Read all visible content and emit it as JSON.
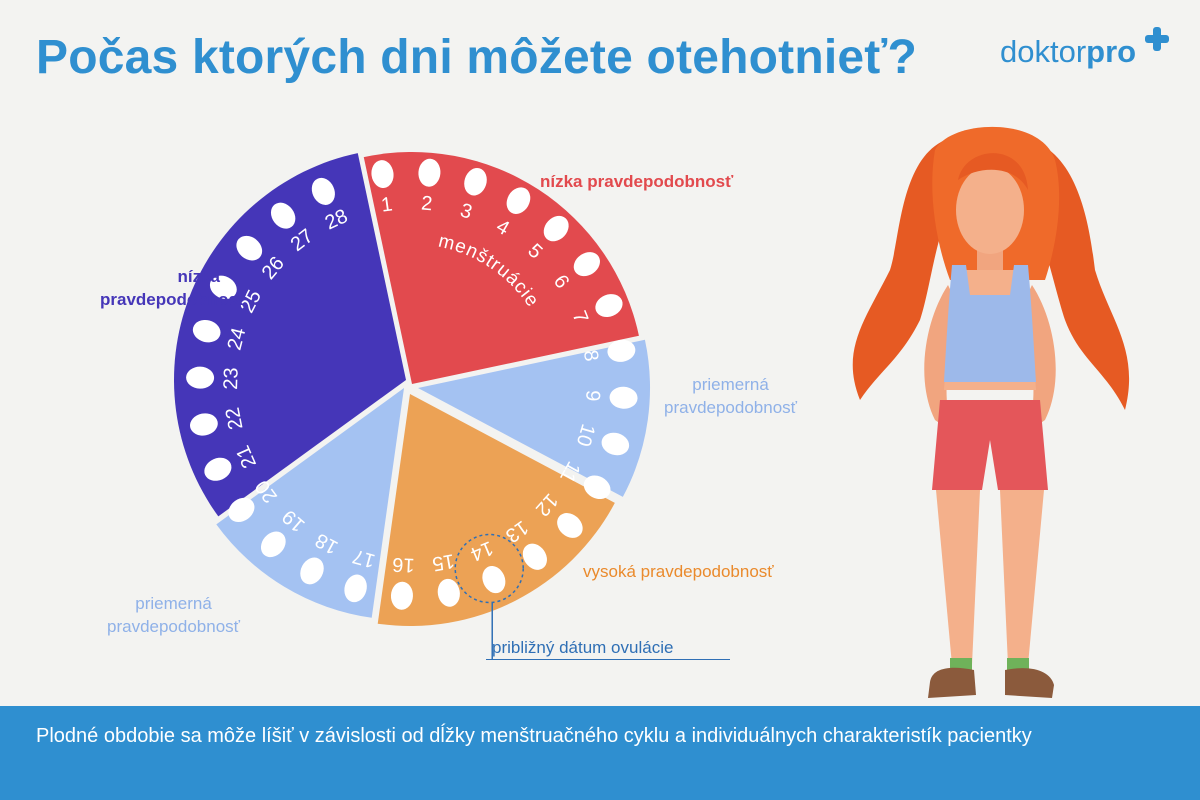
{
  "title": "Počas ktorých dni môžete otehotnieť?",
  "logo": {
    "part1": "doktor",
    "part2": "pro"
  },
  "wheel": {
    "phase_label": "menštruácie",
    "day_numbers": [
      "1",
      "2",
      "3",
      "4",
      "5",
      "6",
      "7",
      "8",
      "9",
      "10",
      "11",
      "12",
      "13",
      "14",
      "15",
      "16",
      "17",
      "18",
      "19",
      "20",
      "21",
      "22",
      "23",
      "24",
      "25",
      "26",
      "27",
      "28"
    ]
  },
  "labels": {
    "low_top": "nízka pravdepodobnosť",
    "low_left_line1": "nízka",
    "low_left_line2": "pravdepodobnosť",
    "medium_right_line1": "priemerná",
    "medium_right_line2": "pravdepodobnosť",
    "high": "vysoká pravdepodobnosť",
    "medium_left_line1": "priemerná",
    "medium_left_line2": "pravdepodobnosť",
    "ovulation": "približný dátum ovulácie"
  },
  "footer": "Plodné obdobie sa môže líšiť v závislosti od dĺžky menštruačného cyklu a individuálnych charakteristík pacientky",
  "colors": {
    "accent": "#2f8fd0",
    "low_red": "#e24a4e",
    "medium_blue": "#a4c2f2",
    "high_orange": "#eca255",
    "low_purple": "#4536b8",
    "ovulation_marker": "#2f6fb5"
  }
}
